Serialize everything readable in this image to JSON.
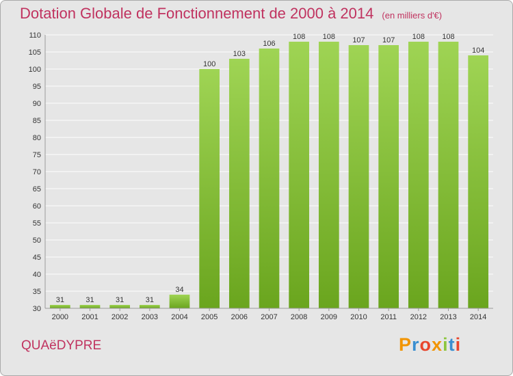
{
  "header": {
    "title": "Dotation Globale de Fonctionnement de 2000 à 2014",
    "unit": "(en milliers d'€)"
  },
  "footer": {
    "commune": "QUAëDYPRE",
    "logo_text": "Proxiti",
    "logo_colors": [
      "#f29400",
      "#3a8fd0",
      "#e8462d",
      "#f29400",
      "#8cc63e",
      "#3a8fd0",
      "#e8462d"
    ]
  },
  "chart_data": {
    "type": "bar",
    "categories": [
      "2000",
      "2001",
      "2002",
      "2003",
      "2004",
      "2005",
      "2006",
      "2007",
      "2008",
      "2009",
      "2010",
      "2011",
      "2012",
      "2013",
      "2014"
    ],
    "values": [
      31,
      31,
      31,
      31,
      34,
      100,
      103,
      106,
      108,
      108,
      107,
      107,
      108,
      108,
      104
    ],
    "ylim": [
      30,
      110
    ],
    "yticks": [
      30,
      35,
      40,
      45,
      50,
      55,
      60,
      65,
      70,
      75,
      80,
      85,
      90,
      95,
      100,
      105,
      110
    ],
    "grid": true,
    "bar_color_top": "#9fd454",
    "bar_color_bottom": "#6aa51e"
  }
}
